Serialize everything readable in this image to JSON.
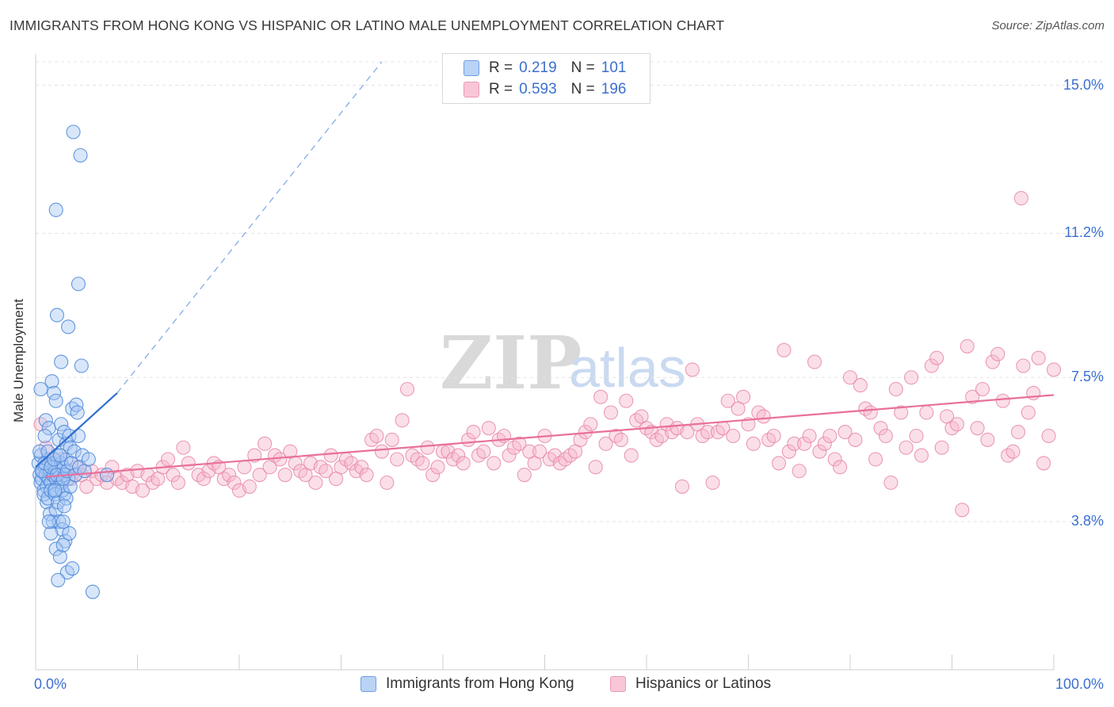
{
  "header": {
    "title": "IMMIGRANTS FROM HONG KONG VS HISPANIC OR LATINO MALE UNEMPLOYMENT CORRELATION CHART",
    "source": "Source: ZipAtlas.com"
  },
  "legend_top": {
    "rows": [
      {
        "r_label": "R =",
        "r_value": "0.219",
        "n_label": "N =",
        "n_value": "101"
      },
      {
        "r_label": "R =",
        "r_value": "0.593",
        "n_label": "N =",
        "n_value": "196"
      }
    ]
  },
  "watermark": {
    "zip": "ZIP",
    "atlas": "atlas"
  },
  "colors": {
    "blue_fill": "#a8c8f5",
    "blue_stroke": "#4a86d8",
    "blue_line": "#2f6fd0",
    "pink_fill": "#f6b8cd",
    "pink_stroke": "#e889aa",
    "pink_line": "#e8709a",
    "grid": "#e4e4e4",
    "axis_text": "#3b6fd0"
  },
  "chart_data": {
    "type": "scatter",
    "title": "IMMIGRANTS FROM HONG KONG VS HISPANIC OR LATINO MALE UNEMPLOYMENT CORRELATION CHART",
    "xlabel": "",
    "ylabel": "Male Unemployment",
    "xlim": [
      0,
      100
    ],
    "ylim": [
      0,
      15.6
    ],
    "x_tick_labels": [
      "0.0%",
      "100.0%"
    ],
    "y_ticks": [
      3.8,
      7.5,
      11.2,
      15.0
    ],
    "y_tick_labels": [
      "3.8%",
      "7.5%",
      "11.2%",
      "15.0%"
    ],
    "grid": "horizontal dashed",
    "legend": "bottom",
    "series": [
      {
        "name": "Immigrants from Hong Kong",
        "trend": {
          "x": [
            0,
            8
          ],
          "y": [
            5.2,
            7.1
          ],
          "dashed_extension_to": [
            34,
            15.6
          ]
        },
        "points": [
          [
            0.3,
            5.3
          ],
          [
            0.4,
            5.0
          ],
          [
            0.5,
            4.8
          ],
          [
            0.5,
            5.5
          ],
          [
            0.6,
            4.9
          ],
          [
            0.7,
            5.1
          ],
          [
            0.8,
            4.6
          ],
          [
            0.9,
            5.2
          ],
          [
            1.0,
            5.0
          ],
          [
            1.1,
            4.7
          ],
          [
            1.2,
            5.4
          ],
          [
            1.3,
            4.9
          ],
          [
            1.4,
            5.1
          ],
          [
            1.5,
            4.8
          ],
          [
            1.6,
            5.3
          ],
          [
            1.7,
            5.0
          ],
          [
            1.8,
            4.6
          ],
          [
            1.9,
            5.2
          ],
          [
            2.0,
            4.9
          ],
          [
            2.1,
            5.5
          ],
          [
            2.2,
            5.1
          ],
          [
            2.3,
            4.7
          ],
          [
            2.4,
            5.0
          ],
          [
            2.5,
            5.3
          ],
          [
            2.6,
            4.8
          ],
          [
            2.7,
            5.2
          ],
          [
            2.8,
            4.5
          ],
          [
            2.9,
            5.0
          ],
          [
            3.0,
            5.4
          ],
          [
            3.2,
            4.9
          ],
          [
            0.5,
            7.2
          ],
          [
            1.0,
            6.4
          ],
          [
            1.3,
            6.2
          ],
          [
            1.6,
            7.4
          ],
          [
            1.8,
            7.1
          ],
          [
            2.0,
            6.9
          ],
          [
            2.3,
            5.9
          ],
          [
            2.5,
            6.3
          ],
          [
            2.8,
            6.1
          ],
          [
            3.0,
            5.8
          ],
          [
            3.3,
            6.0
          ],
          [
            3.6,
            6.7
          ],
          [
            4.0,
            6.8
          ],
          [
            4.2,
            6.0
          ],
          [
            3.4,
            5.7
          ],
          [
            3.8,
            5.6
          ],
          [
            4.6,
            5.5
          ],
          [
            1.1,
            4.3
          ],
          [
            1.4,
            4.0
          ],
          [
            1.7,
            3.8
          ],
          [
            2.0,
            4.1
          ],
          [
            2.3,
            3.8
          ],
          [
            2.6,
            3.6
          ],
          [
            2.9,
            3.3
          ],
          [
            3.3,
            3.5
          ],
          [
            2.0,
            3.1
          ],
          [
            2.4,
            2.9
          ],
          [
            2.7,
            3.2
          ],
          [
            3.1,
            2.5
          ],
          [
            3.6,
            2.6
          ],
          [
            2.2,
            2.3
          ],
          [
            1.5,
            3.5
          ],
          [
            5.6,
            2.0
          ],
          [
            2.0,
            11.8
          ],
          [
            3.7,
            13.8
          ],
          [
            4.4,
            13.2
          ],
          [
            4.2,
            9.9
          ],
          [
            2.1,
            9.1
          ],
          [
            3.2,
            8.8
          ],
          [
            2.5,
            7.9
          ],
          [
            4.5,
            7.8
          ],
          [
            0.8,
            4.5
          ],
          [
            1.2,
            4.4
          ],
          [
            1.5,
            4.6
          ],
          [
            1.9,
            4.5
          ],
          [
            2.2,
            4.3
          ],
          [
            2.6,
            4.6
          ],
          [
            3.0,
            4.4
          ],
          [
            3.4,
            4.7
          ],
          [
            0.4,
            5.6
          ],
          [
            0.6,
            5.1
          ],
          [
            0.9,
            5.3
          ],
          [
            1.2,
            5.6
          ],
          [
            1.5,
            5.2
          ],
          [
            1.8,
            5.4
          ],
          [
            2.1,
            5.0
          ],
          [
            2.4,
            5.5
          ],
          [
            2.7,
            4.9
          ],
          [
            3.1,
            5.1
          ],
          [
            3.5,
            5.3
          ],
          [
            3.9,
            5.0
          ],
          [
            4.3,
            5.2
          ],
          [
            4.8,
            5.1
          ],
          [
            5.2,
            5.4
          ],
          [
            0.9,
            6.0
          ],
          [
            2.7,
            3.8
          ],
          [
            1.3,
            3.8
          ],
          [
            2.8,
            4.2
          ],
          [
            1.9,
            4.6
          ],
          [
            4.1,
            6.6
          ],
          [
            7.0,
            5.0
          ]
        ]
      },
      {
        "name": "Hispanics or Latinos",
        "trend": {
          "x": [
            1,
            100
          ],
          "y": [
            4.95,
            7.05
          ]
        },
        "points": [
          [
            0.5,
            6.3
          ],
          [
            1.0,
            5.7
          ],
          [
            1.5,
            5.3
          ],
          [
            2.0,
            5.0
          ],
          [
            2.5,
            5.4
          ],
          [
            3.0,
            5.1
          ],
          [
            3.5,
            4.9
          ],
          [
            4.0,
            5.2
          ],
          [
            4.5,
            5.0
          ],
          [
            5.0,
            4.7
          ],
          [
            5.5,
            5.1
          ],
          [
            6.0,
            4.9
          ],
          [
            6.5,
            5.0
          ],
          [
            7.0,
            4.8
          ],
          [
            7.5,
            5.2
          ],
          [
            8.0,
            4.9
          ],
          [
            8.5,
            4.8
          ],
          [
            9.0,
            5.0
          ],
          [
            9.5,
            4.7
          ],
          [
            10.0,
            5.1
          ],
          [
            10.5,
            4.6
          ],
          [
            11.0,
            5.0
          ],
          [
            11.5,
            4.8
          ],
          [
            12.0,
            4.9
          ],
          [
            12.5,
            5.2
          ],
          [
            13.0,
            5.4
          ],
          [
            13.5,
            5.0
          ],
          [
            14.0,
            4.8
          ],
          [
            14.5,
            5.7
          ],
          [
            15.0,
            5.3
          ],
          [
            16.0,
            5.0
          ],
          [
            16.5,
            4.9
          ],
          [
            17.0,
            5.1
          ],
          [
            17.5,
            5.3
          ],
          [
            18.0,
            5.2
          ],
          [
            18.5,
            4.9
          ],
          [
            19.0,
            5.0
          ],
          [
            19.5,
            4.8
          ],
          [
            20.0,
            4.6
          ],
          [
            20.5,
            5.2
          ],
          [
            21.0,
            4.7
          ],
          [
            21.5,
            5.5
          ],
          [
            22.0,
            5.0
          ],
          [
            22.5,
            5.8
          ],
          [
            23.0,
            5.2
          ],
          [
            23.5,
            5.5
          ],
          [
            24.0,
            5.4
          ],
          [
            24.5,
            5.0
          ],
          [
            25.0,
            5.6
          ],
          [
            25.5,
            5.3
          ],
          [
            26.0,
            5.1
          ],
          [
            26.5,
            5.0
          ],
          [
            27.0,
            5.3
          ],
          [
            27.5,
            4.8
          ],
          [
            28.0,
            5.2
          ],
          [
            28.5,
            5.1
          ],
          [
            29.0,
            5.5
          ],
          [
            29.5,
            4.9
          ],
          [
            30.0,
            5.2
          ],
          [
            30.5,
            5.4
          ],
          [
            31.0,
            5.3
          ],
          [
            31.5,
            5.1
          ],
          [
            32.0,
            5.2
          ],
          [
            32.5,
            5.0
          ],
          [
            33.0,
            5.9
          ],
          [
            33.5,
            6.0
          ],
          [
            34.0,
            5.6
          ],
          [
            34.5,
            4.8
          ],
          [
            35.0,
            5.9
          ],
          [
            35.5,
            5.4
          ],
          [
            36.0,
            6.4
          ],
          [
            36.5,
            7.2
          ],
          [
            37.0,
            5.5
          ],
          [
            37.5,
            5.4
          ],
          [
            38.0,
            5.3
          ],
          [
            38.5,
            5.7
          ],
          [
            39.0,
            5.0
          ],
          [
            39.5,
            5.2
          ],
          [
            40.0,
            5.6
          ],
          [
            40.5,
            5.6
          ],
          [
            41.0,
            5.4
          ],
          [
            41.5,
            5.5
          ],
          [
            42.0,
            5.3
          ],
          [
            42.5,
            5.9
          ],
          [
            43.0,
            6.1
          ],
          [
            43.5,
            5.5
          ],
          [
            44.0,
            5.6
          ],
          [
            44.5,
            6.2
          ],
          [
            45.0,
            5.3
          ],
          [
            45.5,
            5.9
          ],
          [
            46.0,
            6.0
          ],
          [
            46.5,
            5.5
          ],
          [
            47.0,
            5.7
          ],
          [
            47.5,
            5.8
          ],
          [
            48.0,
            5.0
          ],
          [
            48.5,
            5.6
          ],
          [
            49.0,
            5.3
          ],
          [
            49.5,
            5.6
          ],
          [
            50.0,
            6.0
          ],
          [
            50.5,
            5.4
          ],
          [
            51.0,
            5.5
          ],
          [
            51.5,
            5.3
          ],
          [
            52.0,
            5.4
          ],
          [
            52.5,
            5.5
          ],
          [
            53.0,
            5.6
          ],
          [
            53.5,
            5.9
          ],
          [
            54.0,
            6.1
          ],
          [
            54.5,
            6.3
          ],
          [
            55.0,
            5.2
          ],
          [
            55.5,
            7.0
          ],
          [
            56.0,
            5.8
          ],
          [
            56.5,
            6.6
          ],
          [
            57.0,
            6.0
          ],
          [
            57.5,
            5.9
          ],
          [
            58.0,
            6.9
          ],
          [
            58.5,
            5.5
          ],
          [
            59.0,
            6.4
          ],
          [
            59.5,
            6.5
          ],
          [
            60.0,
            6.2
          ],
          [
            60.5,
            6.1
          ],
          [
            61.0,
            5.9
          ],
          [
            61.5,
            6.0
          ],
          [
            62.0,
            6.3
          ],
          [
            62.5,
            6.1
          ],
          [
            63.0,
            6.2
          ],
          [
            63.5,
            4.7
          ],
          [
            64.0,
            6.1
          ],
          [
            64.5,
            7.7
          ],
          [
            65.0,
            6.3
          ],
          [
            65.5,
            6.0
          ],
          [
            66.0,
            6.1
          ],
          [
            66.5,
            4.8
          ],
          [
            67.0,
            6.1
          ],
          [
            67.5,
            6.2
          ],
          [
            68.0,
            6.9
          ],
          [
            68.5,
            6.0
          ],
          [
            69.0,
            6.7
          ],
          [
            69.5,
            7.0
          ],
          [
            70.0,
            6.3
          ],
          [
            70.5,
            5.8
          ],
          [
            71.0,
            6.6
          ],
          [
            71.5,
            6.5
          ],
          [
            72.0,
            5.9
          ],
          [
            72.5,
            6.0
          ],
          [
            73.0,
            5.3
          ],
          [
            73.5,
            8.2
          ],
          [
            74.0,
            5.6
          ],
          [
            74.5,
            5.8
          ],
          [
            75.0,
            5.1
          ],
          [
            75.5,
            5.8
          ],
          [
            76.0,
            6.0
          ],
          [
            76.5,
            7.9
          ],
          [
            77.0,
            5.6
          ],
          [
            77.5,
            5.8
          ],
          [
            78.0,
            6.0
          ],
          [
            78.5,
            5.4
          ],
          [
            79.0,
            5.2
          ],
          [
            79.5,
            6.1
          ],
          [
            80.0,
            7.5
          ],
          [
            80.5,
            5.9
          ],
          [
            81.0,
            7.3
          ],
          [
            81.5,
            6.7
          ],
          [
            82.0,
            6.6
          ],
          [
            82.5,
            5.4
          ],
          [
            83.0,
            6.2
          ],
          [
            83.5,
            6.0
          ],
          [
            84.0,
            4.8
          ],
          [
            84.5,
            7.2
          ],
          [
            85.0,
            6.6
          ],
          [
            85.5,
            5.7
          ],
          [
            86.0,
            7.5
          ],
          [
            86.5,
            6.0
          ],
          [
            87.0,
            5.5
          ],
          [
            87.5,
            6.6
          ],
          [
            88.0,
            7.8
          ],
          [
            88.5,
            8.0
          ],
          [
            89.0,
            5.7
          ],
          [
            89.5,
            6.5
          ],
          [
            90.0,
            6.2
          ],
          [
            90.5,
            6.3
          ],
          [
            91.0,
            4.1
          ],
          [
            91.5,
            8.3
          ],
          [
            92.0,
            7.0
          ],
          [
            92.5,
            6.2
          ],
          [
            93.0,
            7.2
          ],
          [
            93.5,
            5.9
          ],
          [
            94.0,
            7.9
          ],
          [
            94.5,
            8.1
          ],
          [
            95.0,
            6.9
          ],
          [
            95.5,
            5.5
          ],
          [
            96.0,
            5.6
          ],
          [
            96.5,
            6.1
          ],
          [
            97.0,
            7.8
          ],
          [
            97.5,
            6.6
          ],
          [
            98.0,
            7.1
          ],
          [
            98.5,
            8.0
          ],
          [
            99.0,
            5.3
          ],
          [
            99.5,
            6.0
          ],
          [
            100.0,
            7.7
          ],
          [
            96.8,
            12.1
          ]
        ]
      }
    ]
  },
  "legend_bottom": {
    "items": [
      {
        "label": "Immigrants from Hong Kong"
      },
      {
        "label": "Hispanics or Latinos"
      }
    ]
  }
}
